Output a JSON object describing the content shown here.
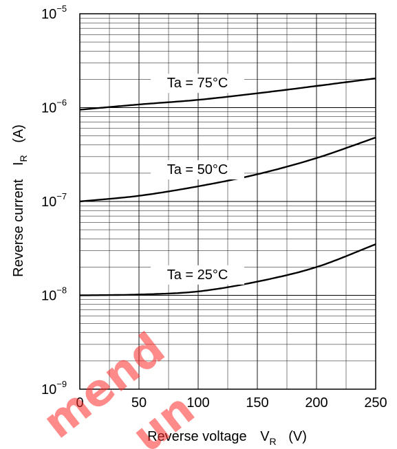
{
  "chart_data": {
    "type": "line",
    "xlabel": {
      "main": "Reverse voltage",
      "symbol": "V",
      "subscript": "R",
      "unit": "(V)"
    },
    "ylabel": {
      "main": "Reverse current",
      "symbol": "I",
      "subscript": "R",
      "unit": "(A)"
    },
    "xlim": [
      0,
      250
    ],
    "ylim": [
      1e-09,
      1e-05
    ],
    "yscale": "log",
    "grid": true,
    "xticks": [
      {
        "value": 0,
        "label": "0"
      },
      {
        "value": 50,
        "label": "50"
      },
      {
        "value": 100,
        "label": "100"
      },
      {
        "value": 150,
        "label": "150"
      },
      {
        "value": 200,
        "label": "200"
      },
      {
        "value": 250,
        "label": "250"
      }
    ],
    "yticks": [
      {
        "value": 1e-09,
        "base": "10",
        "exp": "−9"
      },
      {
        "value": 1e-08,
        "base": "10",
        "exp": "−8"
      },
      {
        "value": 1e-07,
        "base": "10",
        "exp": "−7"
      },
      {
        "value": 1e-06,
        "base": "10",
        "exp": "−6"
      },
      {
        "value": 1e-05,
        "base": "10",
        "exp": "−5"
      }
    ],
    "series": [
      {
        "name": "Ta = 75°C",
        "x": [
          0,
          50,
          100,
          150,
          200,
          250
        ],
        "y": [
          9.5e-07,
          1.08e-06,
          1.21e-06,
          1.42e-06,
          1.7e-06,
          2.05e-06
        ]
      },
      {
        "name": "Ta = 50°C",
        "x": [
          0,
          50,
          100,
          150,
          200,
          250
        ],
        "y": [
          1e-07,
          1.15e-07,
          1.45e-07,
          1.95e-07,
          2.9e-07,
          4.8e-07
        ]
      },
      {
        "name": "Ta = 25°C",
        "x": [
          0,
          50,
          100,
          150,
          200,
          250
        ],
        "y": [
          1e-08,
          1.02e-08,
          1.1e-08,
          1.4e-08,
          2e-08,
          3.5e-08
        ]
      }
    ]
  },
  "watermark": {
    "lines": [
      "mend",
      "un"
    ],
    "color": "#ff2a2a"
  }
}
